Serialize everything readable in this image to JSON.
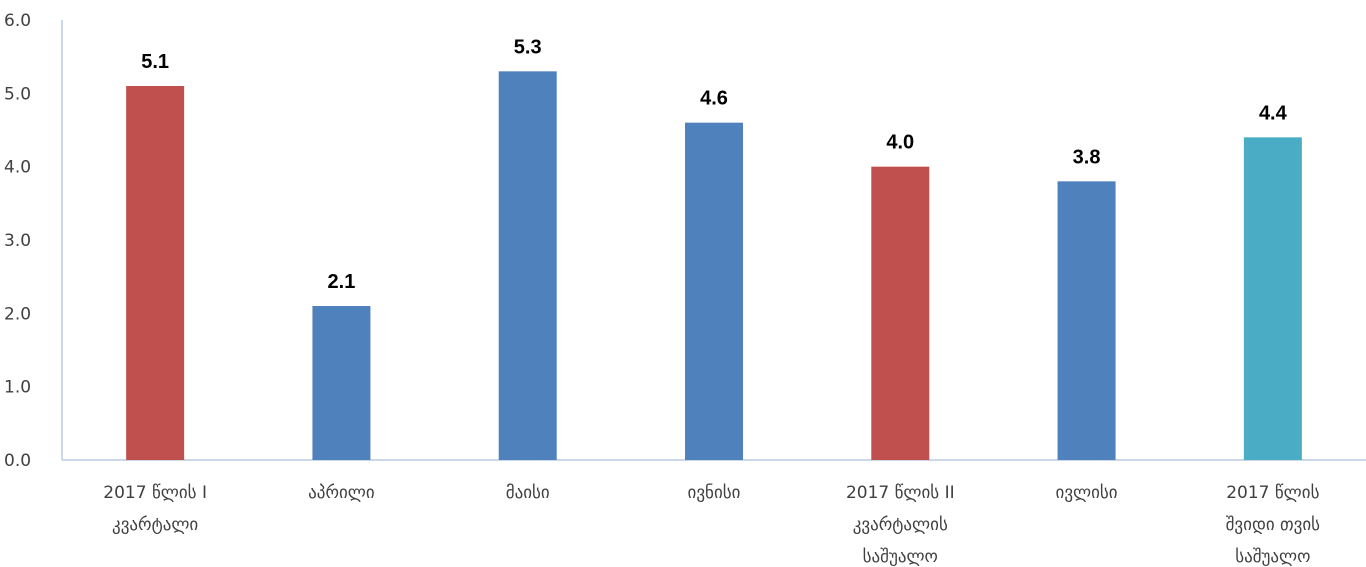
{
  "chart_data": {
    "type": "bar",
    "title": "",
    "xlabel": "",
    "ylabel": "",
    "ylim": [
      0,
      6
    ],
    "yticks": [
      "0.0",
      "1.0",
      "2.0",
      "3.0",
      "4.0",
      "5.0",
      "6.0"
    ],
    "grid": false,
    "categories": [
      [
        "2017 წლის I",
        "კვარტალი"
      ],
      [
        "აპრილი"
      ],
      [
        "მაისი"
      ],
      [
        "ივნისი"
      ],
      [
        "2017 წლის II",
        "კვარტალის",
        "საშუალო"
      ],
      [
        "ივლისი"
      ],
      [
        "2017 წლის",
        "შვიდი თვის",
        "საშუალო"
      ]
    ],
    "values": [
      5.1,
      2.1,
      5.3,
      4.6,
      4.0,
      3.8,
      4.4
    ],
    "data_labels": [
      "5.1",
      "2.1",
      "5.3",
      "4.6",
      "4.0",
      "3.8",
      "4.4"
    ],
    "bar_colors": [
      "#c0504d",
      "#4f81bd",
      "#4f81bd",
      "#4f81bd",
      "#c0504d",
      "#4f81bd",
      "#4bacc6"
    ],
    "axis_color": "#b8cce4"
  }
}
